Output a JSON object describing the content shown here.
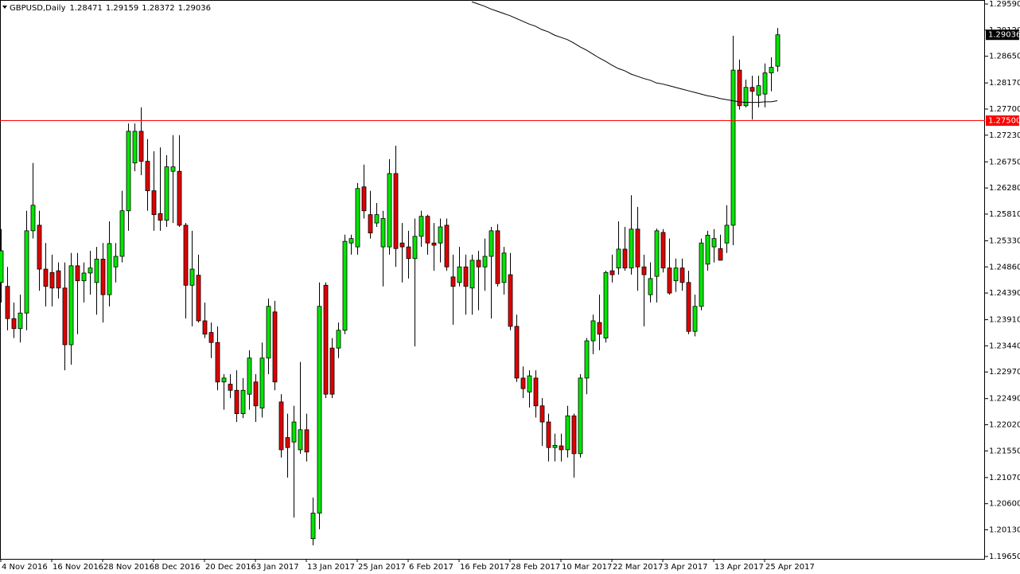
{
  "chart_data": {
    "type": "candlestick",
    "symbol": "GBPUSD,Daily",
    "up_color": "#00e600",
    "down_color": "#e00000",
    "categories": [
      "4 Nov 2016",
      null,
      null,
      null,
      null,
      null,
      null,
      null,
      "16 Nov 2016",
      null,
      null,
      null,
      null,
      null,
      null,
      null,
      "28 Nov 2016",
      null,
      null,
      null,
      null,
      null,
      null,
      null,
      "8 Dec 2016",
      null,
      null,
      null,
      null,
      null,
      null,
      null,
      "20 Dec 2016",
      null,
      null,
      null,
      null,
      null,
      null,
      null,
      "3 Jan 2017",
      null,
      null,
      null,
      null,
      null,
      null,
      null,
      "13 Jan 2017",
      null,
      null,
      null,
      null,
      null,
      null,
      null,
      "25 Jan 2017",
      null,
      null,
      null,
      null,
      null,
      null,
      null,
      "6 Feb 2017",
      null,
      null,
      null,
      null,
      null,
      null,
      null,
      "16 Feb 2017",
      null,
      null,
      null,
      null,
      null,
      null,
      null,
      "28 Feb 2017",
      null,
      null,
      null,
      null,
      null,
      null,
      null,
      "10 Mar 2017",
      null,
      null,
      null,
      null,
      null,
      null,
      null,
      "22 Mar 2017",
      null,
      null,
      null,
      null,
      null,
      null,
      null,
      "3 Apr 2017",
      null,
      null,
      null,
      null,
      null,
      null,
      null,
      "13 Apr 2017",
      null,
      null,
      null,
      null,
      null,
      null,
      null,
      "25 Apr 2017",
      null,
      null
    ],
    "open": [
      1.2458,
      1.2451,
      1.2393,
      1.2375,
      1.2403,
      1.2551,
      1.2561,
      1.2482,
      1.2476,
      1.2479,
      1.2448,
      1.2346,
      1.2488,
      1.2461,
      1.2475,
      1.2458,
      1.25,
      1.2436,
      1.2486,
      1.2505,
      1.2587,
      1.2673,
      1.273,
      1.2676,
      1.2623,
      1.2582,
      1.257,
      1.2658,
      1.2658,
      1.2561,
      1.2453,
      1.2471,
      1.2389,
      1.2368,
      1.235,
      1.2279,
      1.2275,
      1.2264,
      1.2222,
      1.2257,
      1.2279,
      1.2232,
      1.2322,
      1.2405,
      1.2243,
      1.2179,
      1.2171,
      1.2157,
      1.2193,
      1.1997,
      1.2043,
      1.2453,
      1.234,
      1.234,
      1.2372,
      1.2529,
      1.2522,
      1.263,
      1.258,
      1.2565,
      1.2522,
      1.2522,
      1.2654,
      1.2529,
      1.2522,
      1.2501,
      1.2541,
      1.2577,
      1.2529,
      1.2529,
      1.2561,
      1.2468,
      1.2458,
      1.2486,
      1.2448,
      1.2498,
      1.2486,
      1.2505,
      1.2551,
      1.2458,
      1.2472,
      1.2379,
      1.2286,
      1.2261,
      1.2286,
      1.2236,
      1.2207,
      1.2161,
      1.2164,
      1.2157,
      1.2218,
      1.215,
      1.2286,
      1.2353,
      1.2386,
      1.2358,
      1.2479,
      1.2484,
      1.2518,
      1.2484,
      1.2554,
      1.2486,
      1.2436,
      1.2469,
      1.2548,
      1.2484,
      1.2461,
      1.2484,
      1.2458,
      1.237,
      1.2415,
      1.2491,
      1.2522,
      1.2519,
      1.2529,
      1.2561,
      1.284,
      1.2776,
      1.2809,
      1.2795,
      1.2797,
      1.2835,
      1.28471
    ],
    "high": [
      1.2554,
      1.2486,
      1.2422,
      1.2436,
      1.2587,
      1.2673,
      1.2587,
      1.2529,
      1.2508,
      1.2494,
      1.2494,
      1.2511,
      1.2511,
      1.2494,
      1.2515,
      1.2522,
      1.2529,
      1.2568,
      1.2529,
      1.2623,
      1.2744,
      1.2744,
      1.2773,
      1.2716,
      1.2694,
      1.2701,
      1.2687,
      1.2723,
      1.2723,
      1.2565,
      1.2551,
      1.2508,
      1.2422,
      1.2386,
      1.2379,
      1.2293,
      1.2293,
      1.23,
      1.2286,
      1.2336,
      1.2293,
      1.235,
      1.2429,
      1.2425,
      1.2257,
      1.2222,
      1.2236,
      1.2315,
      1.2222,
      1.2071,
      1.2458,
      1.2458,
      1.2358,
      1.2386,
      1.2544,
      1.2544,
      1.2637,
      1.267,
      1.2623,
      1.2601,
      1.2587,
      1.268,
      1.2704,
      1.2565,
      1.2551,
      1.2573,
      1.2587,
      1.258,
      1.2565,
      1.2573,
      1.2573,
      1.2508,
      1.2522,
      1.2508,
      1.2508,
      1.2515,
      1.2537,
      1.2558,
      1.2563,
      1.2522,
      1.2511,
      1.24,
      1.2307,
      1.23,
      1.23,
      1.225,
      1.2222,
      1.2186,
      1.2186,
      1.2236,
      1.2222,
      1.2293,
      1.2358,
      1.24,
      1.2436,
      1.2479,
      1.2508,
      1.2568,
      1.2558,
      1.2615,
      1.2594,
      1.2508,
      1.2494,
      1.2555,
      1.2554,
      1.2537,
      1.2501,
      1.2501,
      1.2479,
      1.2436,
      1.2537,
      1.2551,
      1.2554,
      1.2544,
      1.2597,
      1.2902,
      1.2859,
      1.2823,
      1.283,
      1.283,
      1.2852,
      1.2863,
      1.29159
    ],
    "low": [
      1.2422,
      1.2372,
      1.2358,
      1.235,
      1.2372,
      1.2537,
      1.2443,
      1.2415,
      1.2415,
      1.2429,
      1.23,
      1.231,
      1.2365,
      1.2422,
      1.2436,
      1.24,
      1.2386,
      1.2415,
      1.2458,
      1.2494,
      1.2551,
      1.2658,
      1.2651,
      1.2587,
      1.2551,
      1.2551,
      1.2558,
      1.2565,
      1.2558,
      1.2393,
      1.2379,
      1.2386,
      1.2358,
      1.2322,
      1.2264,
      1.2229,
      1.225,
      1.2207,
      1.2214,
      1.2229,
      1.2207,
      1.2215,
      1.2293,
      1.2264,
      1.2143,
      1.2107,
      1.2035,
      1.215,
      1.2136,
      1.1985,
      1.2014,
      1.225,
      1.225,
      1.2322,
      1.2365,
      1.2508,
      1.2508,
      1.2573,
      1.2537,
      1.2558,
      1.2451,
      1.2508,
      1.2486,
      1.2458,
      1.2465,
      1.2343,
      1.2522,
      1.2508,
      1.2479,
      1.2494,
      1.2479,
      1.2382,
      1.2451,
      1.24,
      1.24,
      1.2408,
      1.2443,
      1.2393,
      1.2451,
      1.2436,
      1.2372,
      1.2279,
      1.225,
      1.2233,
      1.2215,
      1.2164,
      1.2136,
      1.2136,
      1.2136,
      1.2143,
      1.2107,
      1.2143,
      1.2257,
      1.2329,
      1.2336,
      1.235,
      1.2458,
      1.2472,
      1.2479,
      1.2472,
      1.2443,
      1.2379,
      1.2422,
      1.2422,
      1.2476,
      1.2436,
      1.2441,
      1.2443,
      1.2365,
      1.2361,
      1.2408,
      1.2479,
      1.2494,
      1.2498,
      1.2511,
      1.2525,
      1.2769,
      1.2773,
      1.2751,
      1.2773,
      1.2773,
      1.2802,
      1.28372
    ],
    "close": [
      1.2515,
      1.2393,
      1.2375,
      1.2403,
      1.2551,
      1.2597,
      1.2482,
      1.2451,
      1.2448,
      1.2448,
      1.2346,
      1.2488,
      1.2461,
      1.2475,
      1.2484,
      1.25,
      1.2436,
      1.2528,
      1.2505,
      1.2587,
      1.273,
      1.273,
      1.2676,
      1.2623,
      1.258,
      1.257,
      1.2666,
      1.2666,
      1.2561,
      1.2453,
      1.2482,
      1.2389,
      1.2365,
      1.235,
      1.2279,
      1.2286,
      1.2264,
      1.2222,
      1.2264,
      1.2322,
      1.2236,
      1.2322,
      1.2415,
      1.2279,
      1.2157,
      1.2161,
      1.2207,
      1.2193,
      1.2153,
      1.2043,
      1.2415,
      1.2257,
      1.2257,
      1.2372,
      1.2532,
      1.2537,
      1.2627,
      1.2587,
      1.2547,
      1.258,
      1.2573,
      1.2654,
      1.2519,
      1.2522,
      1.2501,
      1.2541,
      1.2577,
      1.2529,
      1.2525,
      1.2558,
      1.2486,
      1.2451,
      1.2486,
      1.2451,
      1.2498,
      1.2486,
      1.2505,
      1.2551,
      1.2456,
      1.2511,
      1.2379,
      1.2286,
      1.2267,
      1.229,
      1.2236,
      1.2207,
      1.2161,
      1.2165,
      1.2157,
      1.2218,
      1.215,
      1.2286,
      1.2353,
      1.2389,
      1.2365,
      1.2476,
      1.2472,
      1.2518,
      1.2484,
      1.2554,
      1.2486,
      1.2472,
      1.2465,
      1.2551,
      1.2484,
      1.2439,
      1.2484,
      1.2458,
      1.237,
      1.2415,
      1.2529,
      1.2543,
      1.2537,
      1.2498,
      1.2561,
      1.284,
      1.2776,
      1.2809,
      1.2802,
      1.2812,
      1.2835,
      1.2845,
      1.29036
    ],
    "ma": {
      "color": "#000000",
      "values": [
        null,
        null,
        null,
        null,
        null,
        null,
        null,
        null,
        null,
        null,
        null,
        null,
        null,
        null,
        null,
        null,
        null,
        null,
        null,
        null,
        null,
        null,
        null,
        null,
        null,
        null,
        null,
        null,
        null,
        null,
        null,
        null,
        null,
        null,
        null,
        null,
        null,
        null,
        null,
        null,
        null,
        null,
        null,
        null,
        null,
        null,
        null,
        null,
        null,
        null,
        null,
        null,
        null,
        null,
        null,
        null,
        null,
        null,
        null,
        null,
        null,
        null,
        null,
        null,
        null,
        null,
        null,
        null,
        null,
        null,
        null,
        null,
        null,
        null,
        1.2963,
        1.2959,
        1.2955,
        1.295,
        1.2946,
        1.2942,
        1.2938,
        1.2933,
        1.2928,
        1.2923,
        1.2919,
        1.2913,
        1.2909,
        1.2903,
        1.2899,
        1.2895,
        1.2889,
        1.2882,
        1.2876,
        1.2869,
        1.2862,
        1.2856,
        1.2849,
        1.2843,
        1.2839,
        1.2833,
        1.2829,
        1.2825,
        1.2822,
        1.2817,
        1.2815,
        1.2812,
        1.2809,
        1.2806,
        1.2803,
        1.28,
        1.2797,
        1.2794,
        1.2792,
        1.2789,
        1.2787,
        1.2785,
        1.2783,
        1.2782,
        1.2782,
        1.2782,
        1.2783,
        1.2783,
        1.2785
      ]
    },
    "level": {
      "value": 1.275,
      "label": "1.27500",
      "color": "#ff0000"
    },
    "ylim": [
      1.19607,
      1.29662
    ],
    "yticks": [
      {
        "value": 1.2959,
        "label": "1.29590"
      },
      {
        "value": 1.2912,
        "label": "1.29120"
      },
      {
        "value": 1.2865,
        "label": "1.28650"
      },
      {
        "value": 1.2817,
        "label": "1.28170"
      },
      {
        "value": 1.277,
        "label": "1.27700"
      },
      {
        "value": 1.2723,
        "label": "1.27230"
      },
      {
        "value": 1.2675,
        "label": "1.26750"
      },
      {
        "value": 1.2628,
        "label": "1.26280"
      },
      {
        "value": 1.2581,
        "label": "1.25810"
      },
      {
        "value": 1.2533,
        "label": "1.25330"
      },
      {
        "value": 1.2486,
        "label": "1.24860"
      },
      {
        "value": 1.2439,
        "label": "1.24390"
      },
      {
        "value": 1.2391,
        "label": "1.23910"
      },
      {
        "value": 1.2344,
        "label": "1.23440"
      },
      {
        "value": 1.2297,
        "label": "1.22970"
      },
      {
        "value": 1.2249,
        "label": "1.22490"
      },
      {
        "value": 1.2202,
        "label": "1.22020"
      },
      {
        "value": 1.2155,
        "label": "1.21550"
      },
      {
        "value": 1.2107,
        "label": "1.21070"
      },
      {
        "value": 1.206,
        "label": "1.20600"
      },
      {
        "value": 1.2013,
        "label": "1.20130"
      },
      {
        "value": 1.1965,
        "label": "1.19650"
      }
    ]
  }
}
